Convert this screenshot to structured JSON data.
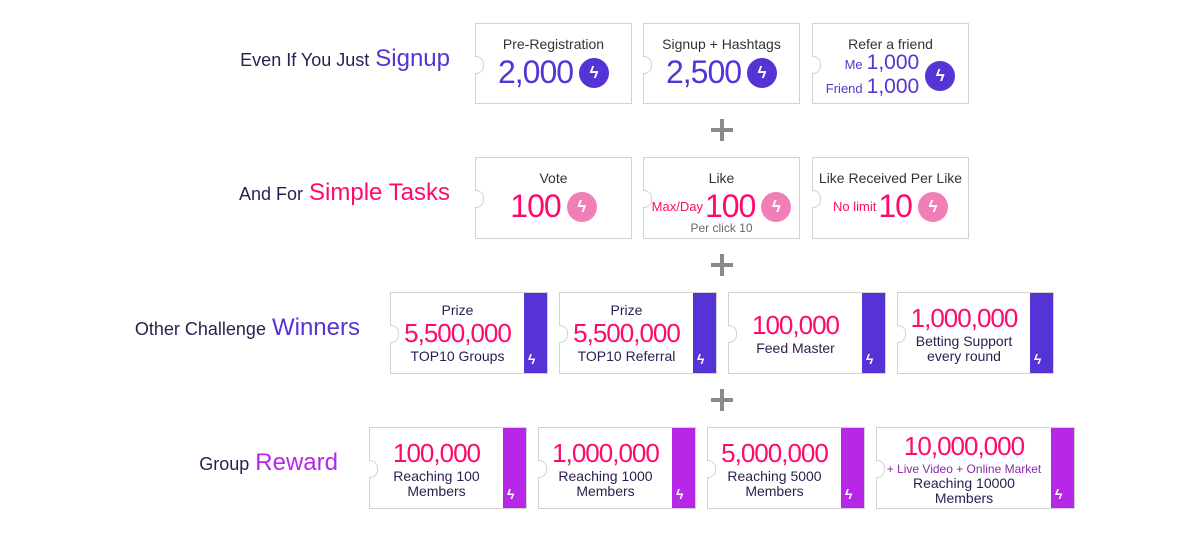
{
  "colors": {
    "purple": "#5533d4",
    "pink": "#ff0a6c",
    "pink_coin": "#f27eb8",
    "reward": "#b727e8",
    "text": "#2d1d4f"
  },
  "rows": [
    {
      "label": "Even If You Just",
      "highlight": "Signup",
      "highlight_color": "#5533d4"
    },
    {
      "label": "And For",
      "highlight": "Simple Tasks",
      "highlight_color": "#ff0a6c"
    },
    {
      "label": "Other Challenge",
      "highlight": "Winners",
      "highlight_color": "#5533d4"
    },
    {
      "label": "Group",
      "highlight": "Reward",
      "highlight_color": "#b727e8"
    }
  ],
  "signup": [
    {
      "title": "Pre-Registration",
      "value": "2,000",
      "icon": "bolt-coin-icon"
    },
    {
      "title": "Signup + Hashtags",
      "value": "2,500",
      "icon": "bolt-coin-icon"
    },
    {
      "title": "Refer a friend",
      "me_label": "Me",
      "me_value": "1,000",
      "friend_label": "Friend",
      "friend_value": "1,000",
      "icon": "bolt-coin-icon"
    }
  ],
  "tasks": [
    {
      "title": "Vote",
      "value": "100",
      "icon": "bolt-coin-icon"
    },
    {
      "title": "Like",
      "prefix": "Max/Day",
      "value": "100",
      "note": "Per click 10",
      "icon": "bolt-coin-icon"
    },
    {
      "title": "Like Received Per Like",
      "prefix": "No limit",
      "value": "10",
      "icon": "bolt-coin-icon"
    }
  ],
  "winners": [
    {
      "title": "Prize",
      "value": "5,500,000",
      "desc": "TOP10 Groups"
    },
    {
      "title": "Prize",
      "value": "5,500,000",
      "desc": "TOP10 Referral"
    },
    {
      "value": "100,000",
      "desc": "Feed Master"
    },
    {
      "value": "1,000,000",
      "desc": "Betting Support every round"
    }
  ],
  "rewards": [
    {
      "value": "100,000",
      "desc": "Reaching 100 Members"
    },
    {
      "value": "1,000,000",
      "desc": "Reaching 1000 Members"
    },
    {
      "value": "5,000,000",
      "desc": "Reaching 5000 Members"
    },
    {
      "value": "10,000,000",
      "extra": "+ Live Video + Online Market",
      "desc": "Reaching 10000 Members"
    }
  ]
}
